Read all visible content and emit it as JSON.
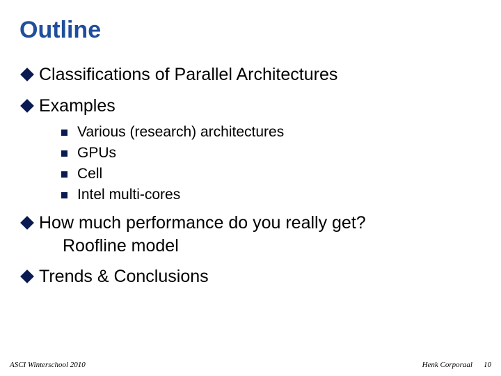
{
  "title": "Outline",
  "bullets": {
    "b0": {
      "text": "Classifications of Parallel Architectures"
    },
    "b1": {
      "text": "Examples",
      "sub": {
        "s0": "Various (research) architectures",
        "s1": "GPUs",
        "s2": "Cell",
        "s3": "Intel multi-cores"
      }
    },
    "b2": {
      "line1": "How much performance do you really get?",
      "line2": "Roofline model"
    },
    "b3": {
      "text": "Trends & Conclusions"
    }
  },
  "footer": {
    "left": "ASCI Winterschool 2010",
    "author": "Henk Corporaal",
    "page": "10"
  },
  "colors": {
    "title": "#1f4e9c",
    "bullet": "#0a1b52",
    "text": "#000000",
    "background": "#ffffff"
  }
}
